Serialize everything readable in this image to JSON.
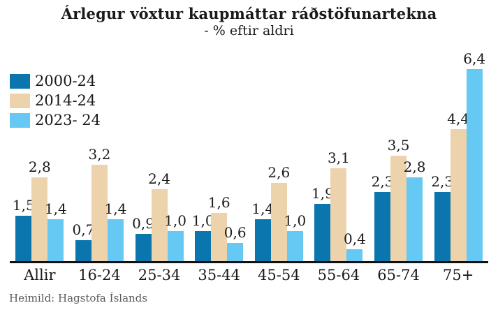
{
  "title": "Árlegur vöxtur kaupmáttar ráðstöfunartekna",
  "subtitle": "- % eftir aldri",
  "source": "Heimild: Hagstofa Íslands",
  "colors": {
    "series_2000_24": "#0a76ad",
    "series_2014_24": "#ecd3ab",
    "series_2023_24": "#66c9f4",
    "axis": "#111111",
    "text": "#1a1a1a",
    "source_text": "#595959"
  },
  "chart_data": {
    "type": "bar",
    "title": "Árlegur vöxtur kaupmáttar ráðstöfunartekna",
    "subtitle": "- % eftir aldri",
    "categories": [
      "Allir",
      "16-24",
      "25-34",
      "35-44",
      "45-54",
      "55-64",
      "65-74",
      "75+"
    ],
    "series": [
      {
        "name": "2000-24",
        "color": "#0a76ad",
        "values": [
          1.5,
          0.7,
          0.9,
          1.0,
          1.4,
          1.9,
          2.3,
          2.3
        ]
      },
      {
        "name": "2014-24",
        "color": "#ecd3ab",
        "values": [
          2.8,
          3.2,
          2.4,
          1.6,
          2.6,
          3.1,
          3.5,
          4.4
        ]
      },
      {
        "name": "2023- 24",
        "color": "#66c9f4",
        "values": [
          1.4,
          1.4,
          1.0,
          0.6,
          1.0,
          0.4,
          2.8,
          6.4
        ]
      }
    ],
    "ylim": [
      0,
      6.8
    ],
    "grid": false,
    "value_labels": true,
    "decimal_separator": ",",
    "legend_position": "top-left",
    "xlabel": "",
    "ylabel": ""
  }
}
